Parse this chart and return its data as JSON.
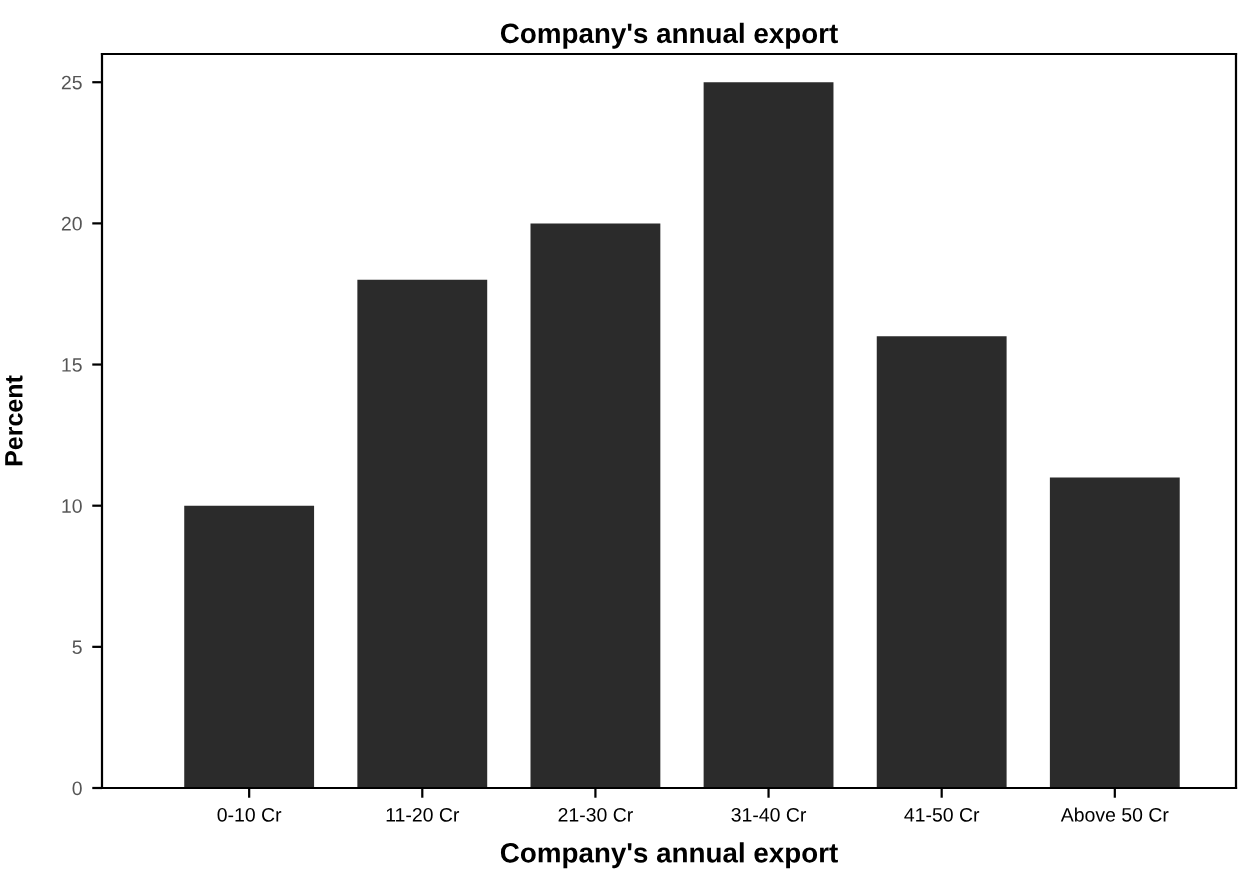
{
  "chart_data": {
    "type": "bar",
    "title": "Company's annual export",
    "xlabel": "Company's annual export",
    "ylabel": "Percent",
    "categories": [
      "0-10 Cr",
      "11-20 Cr",
      "21-30 Cr",
      "31-40 Cr",
      "41-50 Cr",
      "Above 50 Cr"
    ],
    "values": [
      10,
      18,
      20,
      25,
      16,
      11
    ],
    "color": "#2b2b2b",
    "ylim": [
      0,
      26
    ],
    "yticks": [
      0,
      5,
      10,
      15,
      20,
      25
    ],
    "grid": false,
    "legend": false
  }
}
